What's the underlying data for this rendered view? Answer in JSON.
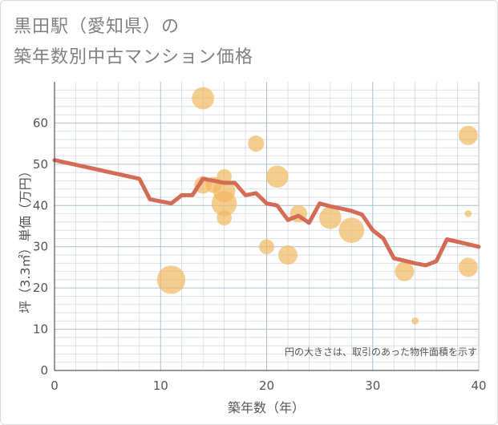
{
  "chart_data": {
    "type": "scatter",
    "title_line1": "黒田駅（愛知県）の",
    "title_line2": "築年数別中古マンション価格",
    "xlabel": "築年数（年）",
    "ylabel": "坪（3.3㎡）単価（万円）",
    "note": "円の大きさは、取引のあった物件面積を示す",
    "xlim": [
      0,
      40
    ],
    "ylim": [
      0,
      70
    ],
    "x_ticks": [
      0,
      10,
      20,
      30,
      40
    ],
    "y_ticks": [
      0,
      10,
      20,
      30,
      40,
      50,
      60
    ],
    "grid": true,
    "colors": {
      "bubble": "#f0b860",
      "line": "#d36b55",
      "grid": "#cdd6e0",
      "major_grid": "#a9bfd8"
    },
    "scatter_points": [
      {
        "x": 14,
        "y": 66,
        "size": 3
      },
      {
        "x": 19,
        "y": 55,
        "size": 2
      },
      {
        "x": 39,
        "y": 57,
        "size": 2.5
      },
      {
        "x": 21,
        "y": 47,
        "size": 3
      },
      {
        "x": 16,
        "y": 47,
        "size": 1.8
      },
      {
        "x": 14,
        "y": 45,
        "size": 2.2
      },
      {
        "x": 15,
        "y": 45,
        "size": 2
      },
      {
        "x": 16,
        "y": 43.5,
        "size": 3
      },
      {
        "x": 16,
        "y": 40.5,
        "size": 3.5
      },
      {
        "x": 16,
        "y": 37,
        "size": 1.8
      },
      {
        "x": 23,
        "y": 38,
        "size": 2.2
      },
      {
        "x": 26,
        "y": 37,
        "size": 3
      },
      {
        "x": 28,
        "y": 34,
        "size": 3.5
      },
      {
        "x": 20,
        "y": 30,
        "size": 1.8
      },
      {
        "x": 22,
        "y": 28,
        "size": 2.5
      },
      {
        "x": 11,
        "y": 22,
        "size": 4
      },
      {
        "x": 33,
        "y": 24,
        "size": 2.5
      },
      {
        "x": 39,
        "y": 25,
        "size": 2.5
      },
      {
        "x": 39,
        "y": 38,
        "size": 0.5
      },
      {
        "x": 34,
        "y": 12,
        "size": 0.5
      }
    ],
    "trend_line": {
      "x": [
        0,
        8,
        9,
        11,
        12,
        13,
        14,
        15,
        16,
        17,
        18,
        19,
        20,
        21,
        22,
        23,
        24,
        25,
        26,
        27,
        28,
        29,
        30,
        31,
        32,
        33,
        34,
        35,
        36,
        37,
        38,
        39,
        40
      ],
      "y": [
        51,
        46.5,
        41.5,
        40.5,
        42.5,
        42.5,
        46.5,
        46,
        45.5,
        45.5,
        42.5,
        43,
        40.5,
        40,
        36.5,
        37.5,
        35.8,
        40.5,
        39.8,
        39.3,
        38.7,
        37.8,
        34,
        32,
        27.2,
        26.6,
        26,
        25.5,
        26.5,
        31.8,
        31.2,
        30.6,
        30
      ]
    }
  }
}
